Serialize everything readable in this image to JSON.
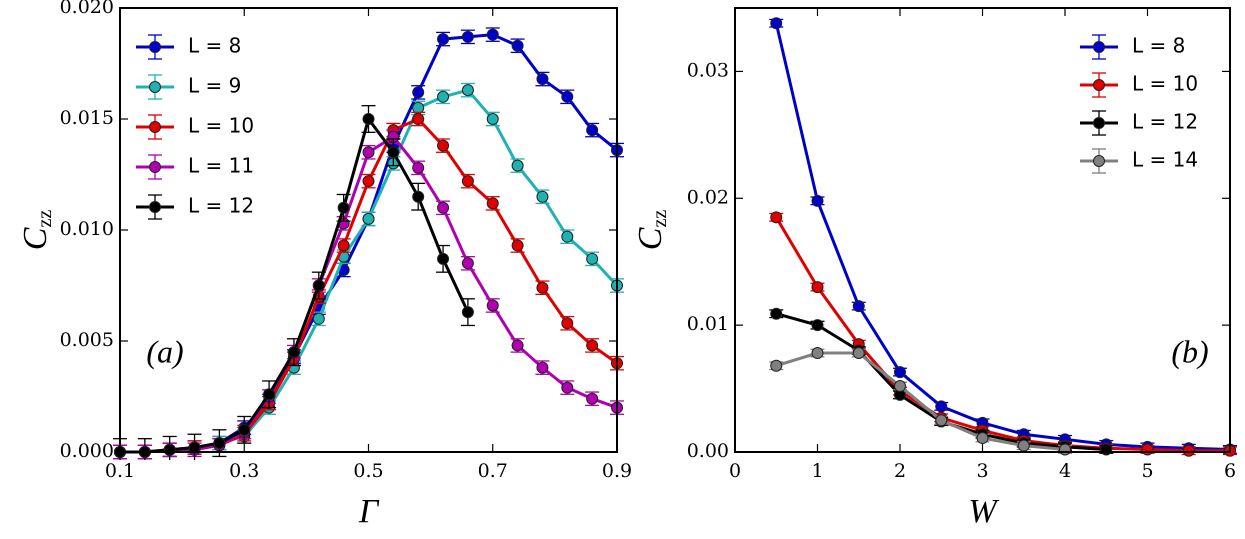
{
  "chart_data": [
    {
      "type": "line",
      "xlabel": "Γ",
      "ylabel": "C",
      "ylabel_sub": "zz",
      "annotation": "(a)",
      "legend": "upper left",
      "x": [
        0.1,
        0.14,
        0.18,
        0.22,
        0.26,
        0.3,
        0.34,
        0.38,
        0.42,
        0.46,
        0.5,
        0.54,
        0.58,
        0.62,
        0.66,
        0.7,
        0.74,
        0.78,
        0.82,
        0.86,
        0.9
      ],
      "xlim": [
        0.1,
        0.9
      ],
      "xticks": [
        0.1,
        0.3,
        0.5,
        0.7,
        0.9
      ],
      "ylim": [
        0,
        0.02
      ],
      "yticks": [
        {
          "value": 0,
          "label": "0.000"
        },
        0.005,
        {
          "value": 0.01,
          "label": "0.010"
        },
        0.015,
        {
          "value": 0.02,
          "label": "0.020"
        }
      ],
      "series": [
        {
          "name": "L = 8",
          "color": "#0000cc",
          "error": 0.0003,
          "values": [
            0,
            0,
            0.0001,
            0.0002,
            0.0004,
            0.0011,
            0.0023,
            0.0043,
            0.0065,
            0.0082,
            0.0105,
            0.0138,
            0.0162,
            0.0186,
            0.0187,
            0.0188,
            0.0183,
            0.0168,
            0.016,
            0.0145,
            0.0136
          ]
        },
        {
          "name": "L = 9",
          "color": "#20b2b2",
          "error": 0.0003,
          "values": [
            0,
            0,
            0.0001,
            0.0002,
            0.0004,
            0.0007,
            0.002,
            0.0038,
            0.006,
            0.0088,
            0.0105,
            0.013,
            0.0155,
            0.016,
            0.0163,
            0.015,
            0.0129,
            0.0115,
            0.0097,
            0.0087,
            0.0075
          ]
        },
        {
          "name": "L = 10",
          "color": "#e00000",
          "error": 0.0003,
          "values": [
            0,
            0,
            0.0001,
            0.0002,
            0.0003,
            0.0008,
            0.0022,
            0.0042,
            0.007,
            0.0093,
            0.0122,
            0.0145,
            0.015,
            0.0138,
            0.0122,
            0.0112,
            0.0093,
            0.0074,
            0.0058,
            0.0048,
            0.004
          ]
        },
        {
          "name": "L = 11",
          "color": "#b000b0",
          "error": 0.0003,
          "values": [
            0,
            0,
            0.0001,
            0.0001,
            0.0003,
            0.0009,
            0.0025,
            0.0045,
            0.0075,
            0.0103,
            0.0135,
            0.0142,
            0.0128,
            0.011,
            0.0085,
            0.0066,
            0.0048,
            0.0038,
            0.0029,
            0.0024,
            0.002
          ]
        },
        {
          "name": "L = 12",
          "color": "#000000",
          "error": 0.0006,
          "values": [
            0,
            0,
            0.0001,
            0.0002,
            0.0004,
            0.001,
            0.0026,
            0.0045,
            0.0075,
            0.011,
            0.015,
            0.0135,
            0.0115,
            0.0087,
            0.0063,
            null,
            null,
            null,
            null,
            null,
            null
          ]
        }
      ]
    },
    {
      "type": "line",
      "xlabel": "W",
      "ylabel": "C",
      "ylabel_sub": "zz",
      "annotation": "(b)",
      "legend": "upper right",
      "x": [
        0.5,
        1,
        1.5,
        2,
        2.5,
        3,
        3.5,
        4,
        4.5,
        5,
        5.5,
        6
      ],
      "xlim": [
        0,
        6
      ],
      "xticks": [
        0,
        1,
        2,
        3,
        4,
        5,
        6
      ],
      "ylim": [
        0,
        0.035
      ],
      "yticks": [
        {
          "value": 0,
          "label": "0.00"
        },
        0.01,
        0.02,
        0.03
      ],
      "series": [
        {
          "name": "L = 8",
          "color": "#0000cc",
          "error": 0.0003,
          "values": [
            0.0338,
            0.0198,
            0.0115,
            0.0063,
            0.0036,
            0.0023,
            0.0014,
            0.001,
            0.0006,
            0.0004,
            0.0003,
            0.0002
          ]
        },
        {
          "name": "L = 10",
          "color": "#e00000",
          "error": 0.0003,
          "values": [
            0.0185,
            0.013,
            0.0085,
            0.0048,
            0.0027,
            0.0017,
            0.0009,
            0.0005,
            0.0003,
            0.0002,
            0.0001,
            0.0001
          ]
        },
        {
          "name": "L = 12",
          "color": "#000000",
          "error": 0.0003,
          "values": [
            0.0109,
            0.01,
            0.008,
            0.0045,
            0.0024,
            0.0014,
            0.0007,
            0.0004,
            0.0002,
            null,
            null,
            null
          ]
        },
        {
          "name": "L = 14",
          "color": "#808080",
          "error": 0.0003,
          "values": [
            0.0068,
            0.0078,
            0.0078,
            0.0052,
            0.0025,
            0.0011,
            0.0005,
            0.0002,
            null,
            null,
            null,
            null
          ]
        }
      ]
    }
  ]
}
